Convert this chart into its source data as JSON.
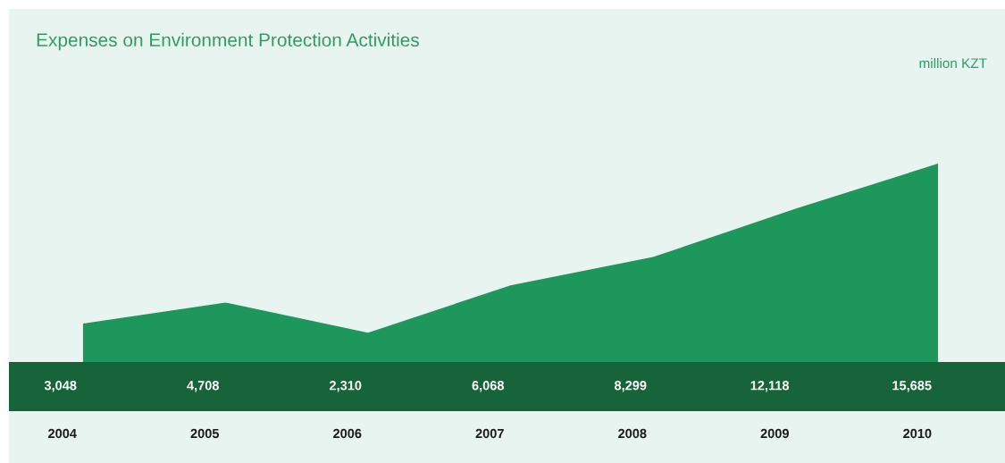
{
  "chart_data": {
    "type": "area",
    "title": "Expenses on Environment Protection Activities",
    "annotations": [
      "million KZT"
    ],
    "categories": [
      "2004",
      "2005",
      "2006",
      "2007",
      "2008",
      "2009",
      "2010"
    ],
    "values": [
      3048,
      4708,
      2310,
      6068,
      8299,
      12118,
      15685
    ],
    "color": "#1e975c",
    "value_labels": [
      "3,048",
      "4,708",
      "2,310",
      "6,068",
      "8,299",
      "12,118",
      "15,685"
    ],
    "tick_labels": "x"
  }
}
